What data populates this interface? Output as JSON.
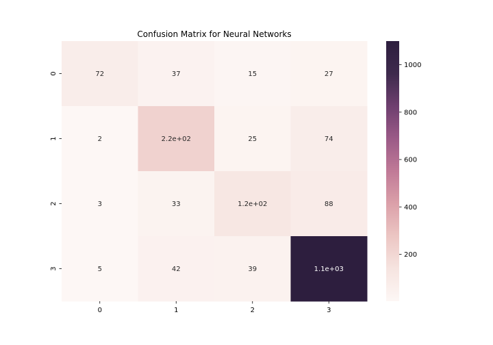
{
  "chart_data": {
    "type": "heatmap",
    "title": "Confusion Matrix for Neural Networks",
    "xlabel": "",
    "ylabel": "",
    "x_categories": [
      "0",
      "1",
      "2",
      "3"
    ],
    "y_categories": [
      "0",
      "1",
      "2",
      "3"
    ],
    "values": [
      [
        72,
        37,
        15,
        27
      ],
      [
        2,
        220,
        25,
        74
      ],
      [
        3,
        33,
        120,
        88
      ],
      [
        5,
        42,
        39,
        1100
      ]
    ],
    "cell_labels": [
      [
        "72",
        "37",
        "15",
        "27"
      ],
      [
        "2",
        "2.2e+02",
        "25",
        "74"
      ],
      [
        "3",
        "33",
        "1.2e+02",
        "88"
      ],
      [
        "5",
        "42",
        "39",
        "1.1e+03"
      ]
    ],
    "colorbar": {
      "min": 2,
      "max": 1100,
      "ticks": [
        200,
        400,
        600,
        800,
        1000
      ],
      "tick_labels": [
        "200",
        "400",
        "600",
        "800",
        "1000"
      ]
    },
    "colormap_stops": [
      "#fdf7f5",
      "#f6e4e0",
      "#ecc6c3",
      "#dba0a9",
      "#c07a97",
      "#9b5a87",
      "#6e3f6f",
      "#3e2a4d",
      "#2d1e3e"
    ],
    "colors": {
      "text_dark": "#262626",
      "text_light": "#ffffff"
    }
  }
}
